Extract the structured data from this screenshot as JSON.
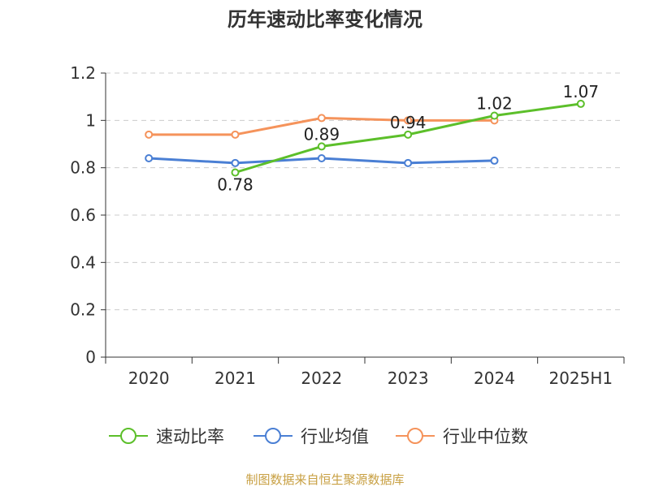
{
  "chart_data": {
    "type": "line",
    "title": "历年速动比率变化情况",
    "categories": [
      "2020",
      "2021",
      "2022",
      "2023",
      "2024",
      "2025H1"
    ],
    "ylim": [
      0,
      1.2
    ],
    "yticks": [
      "0",
      "0.2",
      "0.4",
      "0.6",
      "0.8",
      "1",
      "1.2"
    ],
    "grid": true,
    "legend_position": "bottom",
    "series": [
      {
        "name": "速动比率",
        "color": "#5cbf2a",
        "values": [
          null,
          0.78,
          0.89,
          0.94,
          1.02,
          1.07
        ],
        "labels": [
          "",
          "0.78",
          "0.89",
          "0.94",
          "1.02",
          "1.07"
        ]
      },
      {
        "name": "行业均值",
        "color": "#4a7fd4",
        "values": [
          0.84,
          0.82,
          0.84,
          0.82,
          0.83,
          null
        ]
      },
      {
        "name": "行业中位数",
        "color": "#f5935b",
        "values": [
          0.94,
          0.94,
          1.01,
          1.0,
          1.0,
          null
        ]
      }
    ],
    "source": "制图数据来自恒生聚源数据库"
  }
}
